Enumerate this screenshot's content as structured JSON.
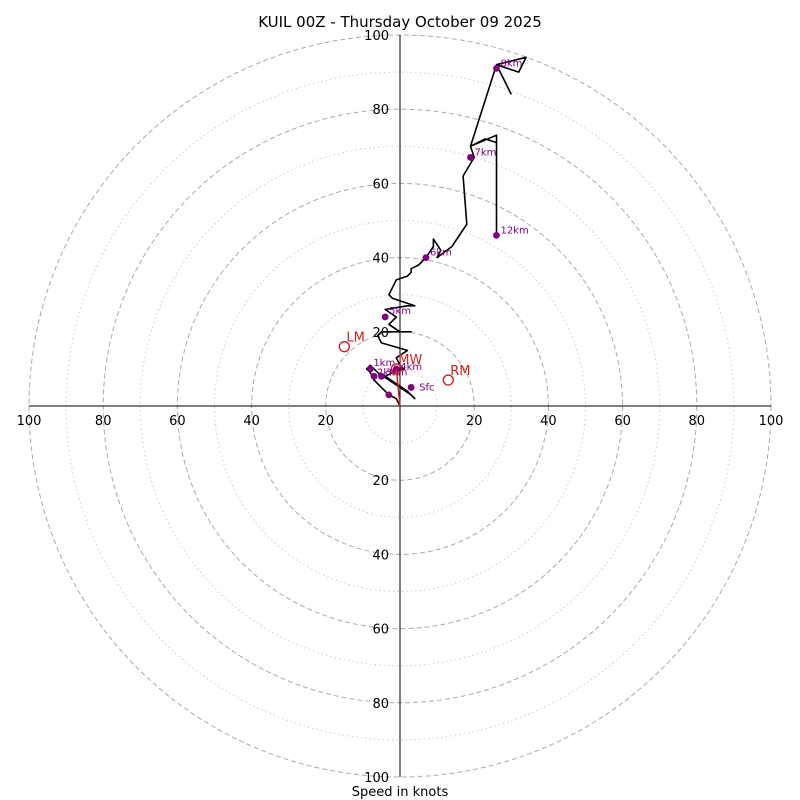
{
  "chart_data": {
    "type": "hodograph",
    "title": "KUIL 00Z - Thursday October 09 2025",
    "xlabel": "Speed in knots",
    "units": "knots",
    "max_speed": 100,
    "ring_labels": [
      "20",
      "40",
      "60",
      "80",
      "100"
    ],
    "colors": {
      "trace": "#000000",
      "height_marker": "#800080",
      "motion_marker": "#cc2222",
      "ring_major": "#aaaaaa",
      "ring_minor": "#cccccc",
      "axis": "#000000"
    },
    "trace": [
      [
        0,
        0
      ],
      [
        -1,
        2
      ],
      [
        -3,
        3
      ],
      [
        -5,
        5
      ],
      [
        -7,
        7
      ],
      [
        -8,
        9
      ],
      [
        -9,
        10
      ],
      [
        -8,
        11
      ],
      [
        -6,
        9
      ],
      [
        -3,
        7
      ],
      [
        0,
        5
      ],
      [
        3,
        3
      ],
      [
        4,
        2
      ],
      [
        2,
        4
      ],
      [
        -1,
        6
      ],
      [
        -4,
        8
      ],
      [
        -2,
        9
      ],
      [
        1,
        10
      ],
      [
        0,
        11
      ],
      [
        -1,
        13
      ],
      [
        2,
        15
      ],
      [
        -5,
        17
      ],
      [
        -6,
        19
      ],
      [
        -5,
        20
      ],
      [
        3,
        20
      ],
      [
        0,
        20
      ],
      [
        -3,
        22
      ],
      [
        -1,
        24
      ],
      [
        -4,
        26
      ],
      [
        2,
        27
      ],
      [
        4,
        27
      ],
      [
        -2,
        29
      ],
      [
        -3,
        30
      ],
      [
        -2,
        32
      ],
      [
        -1,
        34
      ],
      [
        2,
        35
      ],
      [
        3,
        36
      ],
      [
        3,
        37
      ],
      [
        5,
        38
      ],
      [
        7,
        40
      ],
      [
        9,
        43
      ],
      [
        9,
        45
      ],
      [
        11,
        42
      ],
      [
        10,
        40
      ],
      [
        14,
        43
      ],
      [
        18,
        49
      ],
      [
        17,
        62
      ],
      [
        20,
        67
      ],
      [
        19,
        70
      ],
      [
        23,
        72
      ],
      [
        26,
        71
      ],
      [
        26,
        46
      ],
      [
        26,
        73
      ],
      [
        19,
        70
      ],
      [
        26,
        92
      ],
      [
        32,
        90
      ],
      [
        34,
        94
      ],
      [
        26,
        92
      ],
      [
        30,
        84
      ]
    ],
    "height_markers": [
      {
        "label": "Sfc",
        "u": 3,
        "v": 5,
        "label_dx": 8,
        "label_dy": 0
      },
      {
        "label": "",
        "u": -3,
        "v": 3,
        "label_dx": 0,
        "label_dy": 0
      },
      {
        "label": "1km",
        "u": -8,
        "v": 10,
        "label_dx": 3,
        "label_dy": -6
      },
      {
        "label": "2km",
        "u": -7,
        "v": 8,
        "label_dx": 3,
        "label_dy": -4
      },
      {
        "label": "3km",
        "u": -5,
        "v": 8,
        "label_dx": 4,
        "label_dy": -4
      },
      {
        "label": "4km",
        "u": -1,
        "v": 10,
        "label_dx": 4,
        "label_dy": -2
      },
      {
        "label": "5km",
        "u": -4,
        "v": 24,
        "label_dx": 4,
        "label_dy": -6
      },
      {
        "label": "6km",
        "u": 7,
        "v": 40,
        "label_dx": 4,
        "label_dy": -5
      },
      {
        "label": "7km",
        "u": 19,
        "v": 67,
        "label_dx": 4,
        "label_dy": -5
      },
      {
        "label": "8km",
        "u": 26,
        "v": 91,
        "label_dx": 4,
        "label_dy": -5
      },
      {
        "label": "12km",
        "u": 26,
        "v": 46,
        "label_dx": 4,
        "label_dy": -5
      }
    ],
    "motion_markers": [
      {
        "label": "LM",
        "u": -15,
        "v": 16
      },
      {
        "label": "MW",
        "u": -1,
        "v": 10
      },
      {
        "label": "RM",
        "u": 13,
        "v": 7
      }
    ]
  }
}
